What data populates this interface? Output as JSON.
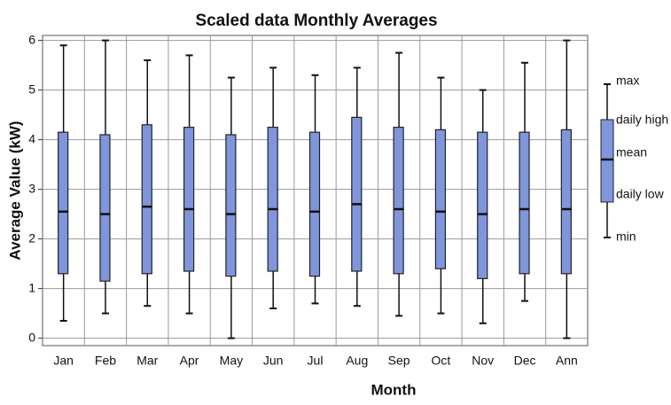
{
  "chart_data": {
    "type": "box",
    "title": "Scaled data Monthly Averages",
    "x_label": "Month",
    "y_label": "Average Value (kW)",
    "categories": [
      "Jan",
      "Feb",
      "Mar",
      "Apr",
      "May",
      "Jun",
      "Jul",
      "Aug",
      "Sep",
      "Oct",
      "Nov",
      "Dec",
      "Ann"
    ],
    "series": [
      {
        "name": "max",
        "values": [
          5.9,
          6.0,
          5.6,
          5.7,
          5.25,
          5.45,
          5.3,
          5.45,
          5.75,
          5.25,
          5.0,
          5.55,
          6.0
        ]
      },
      {
        "name": "daily high",
        "values": [
          4.15,
          4.1,
          4.3,
          4.25,
          4.1,
          4.25,
          4.15,
          4.45,
          4.25,
          4.2,
          4.15,
          4.15,
          4.2
        ]
      },
      {
        "name": "mean",
        "values": [
          2.55,
          2.5,
          2.65,
          2.6,
          2.5,
          2.6,
          2.55,
          2.7,
          2.6,
          2.55,
          2.5,
          2.6,
          2.6
        ]
      },
      {
        "name": "daily low",
        "values": [
          1.3,
          1.15,
          1.3,
          1.35,
          1.25,
          1.35,
          1.25,
          1.35,
          1.3,
          1.4,
          1.2,
          1.3,
          1.3
        ]
      },
      {
        "name": "min",
        "values": [
          0.35,
          0.5,
          0.65,
          0.5,
          0.0,
          0.6,
          0.7,
          0.65,
          0.45,
          0.5,
          0.3,
          0.75,
          0.0
        ]
      }
    ],
    "color": "#7f96dc",
    "ylim": [
      -0.15,
      6.1
    ],
    "yticks": [
      0,
      1,
      2,
      3,
      4,
      5,
      6
    ],
    "grid": true,
    "legend": "right"
  }
}
